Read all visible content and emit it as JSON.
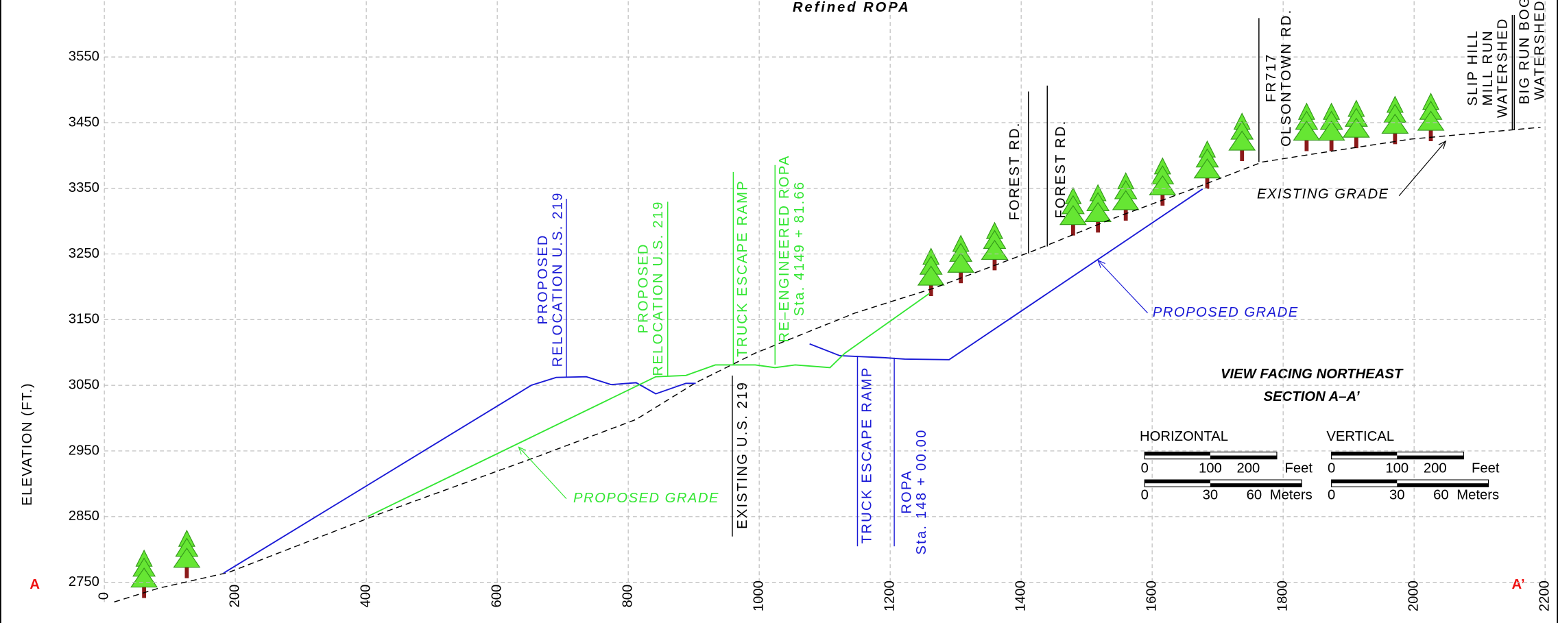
{
  "chart_data": {
    "type": "line",
    "title": "Refined ROPA",
    "y_label": "ELEVATION (FT.)",
    "section_start": "A",
    "section_end": "A’",
    "view_title": [
      "VIEW FACING NORTHEAST",
      "SECTION A–A’"
    ],
    "xlim": [
      0,
      2200
    ],
    "xticks": [
      0,
      200,
      400,
      600,
      800,
      1000,
      1200,
      1400,
      1600,
      1800,
      2000,
      2200
    ],
    "ylim": [
      2720,
      3635
    ],
    "yticks": [
      2750,
      2850,
      2950,
      3050,
      3150,
      3250,
      3350,
      3450,
      3550
    ],
    "grid": true,
    "series": [
      {
        "name": "EXISTING GRADE",
        "color": "#000000",
        "style": "dashed",
        "x": [
          15,
          83,
          190,
          417,
          660,
          812,
          903,
          994,
          1146,
          1267,
          1419,
          1540,
          1662,
          1768,
          1844,
          1995,
          2193
        ],
        "values": [
          2720,
          2741,
          2765,
          2853,
          2941,
          2998,
          3054,
          3099,
          3160,
          3198,
          3255,
          3304,
          3349,
          3390,
          3402,
          3425,
          3443
        ]
      },
      {
        "name": "PROPOSED GRADE",
        "color": "#1a1ad6",
        "style": "solid",
        "x": [
          182,
          652,
          690,
          736,
          774,
          812,
          842,
          888,
          903,
          null,
          1077,
          1123,
          1191,
          1222,
          1290,
          1677
        ],
        "values": [
          2764,
          3050,
          3062,
          3063,
          3051,
          3054,
          3037,
          3053,
          3053,
          null,
          3113,
          3095,
          3092,
          3090,
          3089,
          3349
        ]
      },
      {
        "name": "PROPOSED GRADE",
        "color": "#33e633",
        "style": "solid",
        "x": [
          402,
          842,
          888,
          933,
          994,
          1024,
          1055,
          1108,
          1131,
          1260
        ],
        "values": [
          2850,
          3063,
          3065,
          3081,
          3081,
          3077,
          3081,
          3077,
          3099,
          3190
        ]
      }
    ],
    "annotations": [
      {
        "lines": [
          "PROPOSED",
          "RELOCATION  U.S.  219"
        ],
        "color": "#1a1ad6"
      },
      {
        "lines": [
          "PROPOSED",
          "RELOCATION  U.S.  219"
        ],
        "color": "#33e633"
      },
      {
        "lines": [
          "TRUCK  ESCAPE  RAMP"
        ],
        "color": "#33e633"
      },
      {
        "lines": [
          "RE–ENGINEERED  ROPA",
          "Sta.  4149 + 81.66"
        ],
        "color": "#33e633"
      },
      {
        "lines": [
          "EXISTING  U.S.  219"
        ],
        "color": "#000000"
      },
      {
        "lines": [
          "TRUCK  ESCAPE  RAMP"
        ],
        "color": "#1a1ad6"
      },
      {
        "lines": [
          "ROPA",
          "Sta.  148 + 00.00"
        ],
        "color": "#1a1ad6"
      },
      {
        "lines": [
          "FOREST  RD."
        ],
        "color": "#000000"
      },
      {
        "lines": [
          "FOREST  RD."
        ],
        "color": "#000000"
      },
      {
        "lines": [
          "FR717",
          "OLSONTOWN  RD."
        ],
        "color": "#000000"
      },
      {
        "lines": [
          "SLIP  HILL",
          "MILL  RUN",
          "WATERSHED"
        ],
        "color": "#000000"
      },
      {
        "lines": [
          "BIG  RUN  BOG",
          "WATERSHED"
        ],
        "color": "#000000"
      }
    ],
    "scales": [
      {
        "title": "HORIZONTAL",
        "feet": [
          0,
          100,
          200
        ],
        "feet_unit": "Feet",
        "meters": [
          0,
          30,
          60
        ],
        "meters_unit": "Meters"
      },
      {
        "title": "VERTICAL",
        "feet": [
          0,
          100,
          200
        ],
        "feet_unit": "Feet",
        "meters": [
          0,
          30,
          60
        ],
        "meters_unit": "Meters"
      }
    ]
  }
}
